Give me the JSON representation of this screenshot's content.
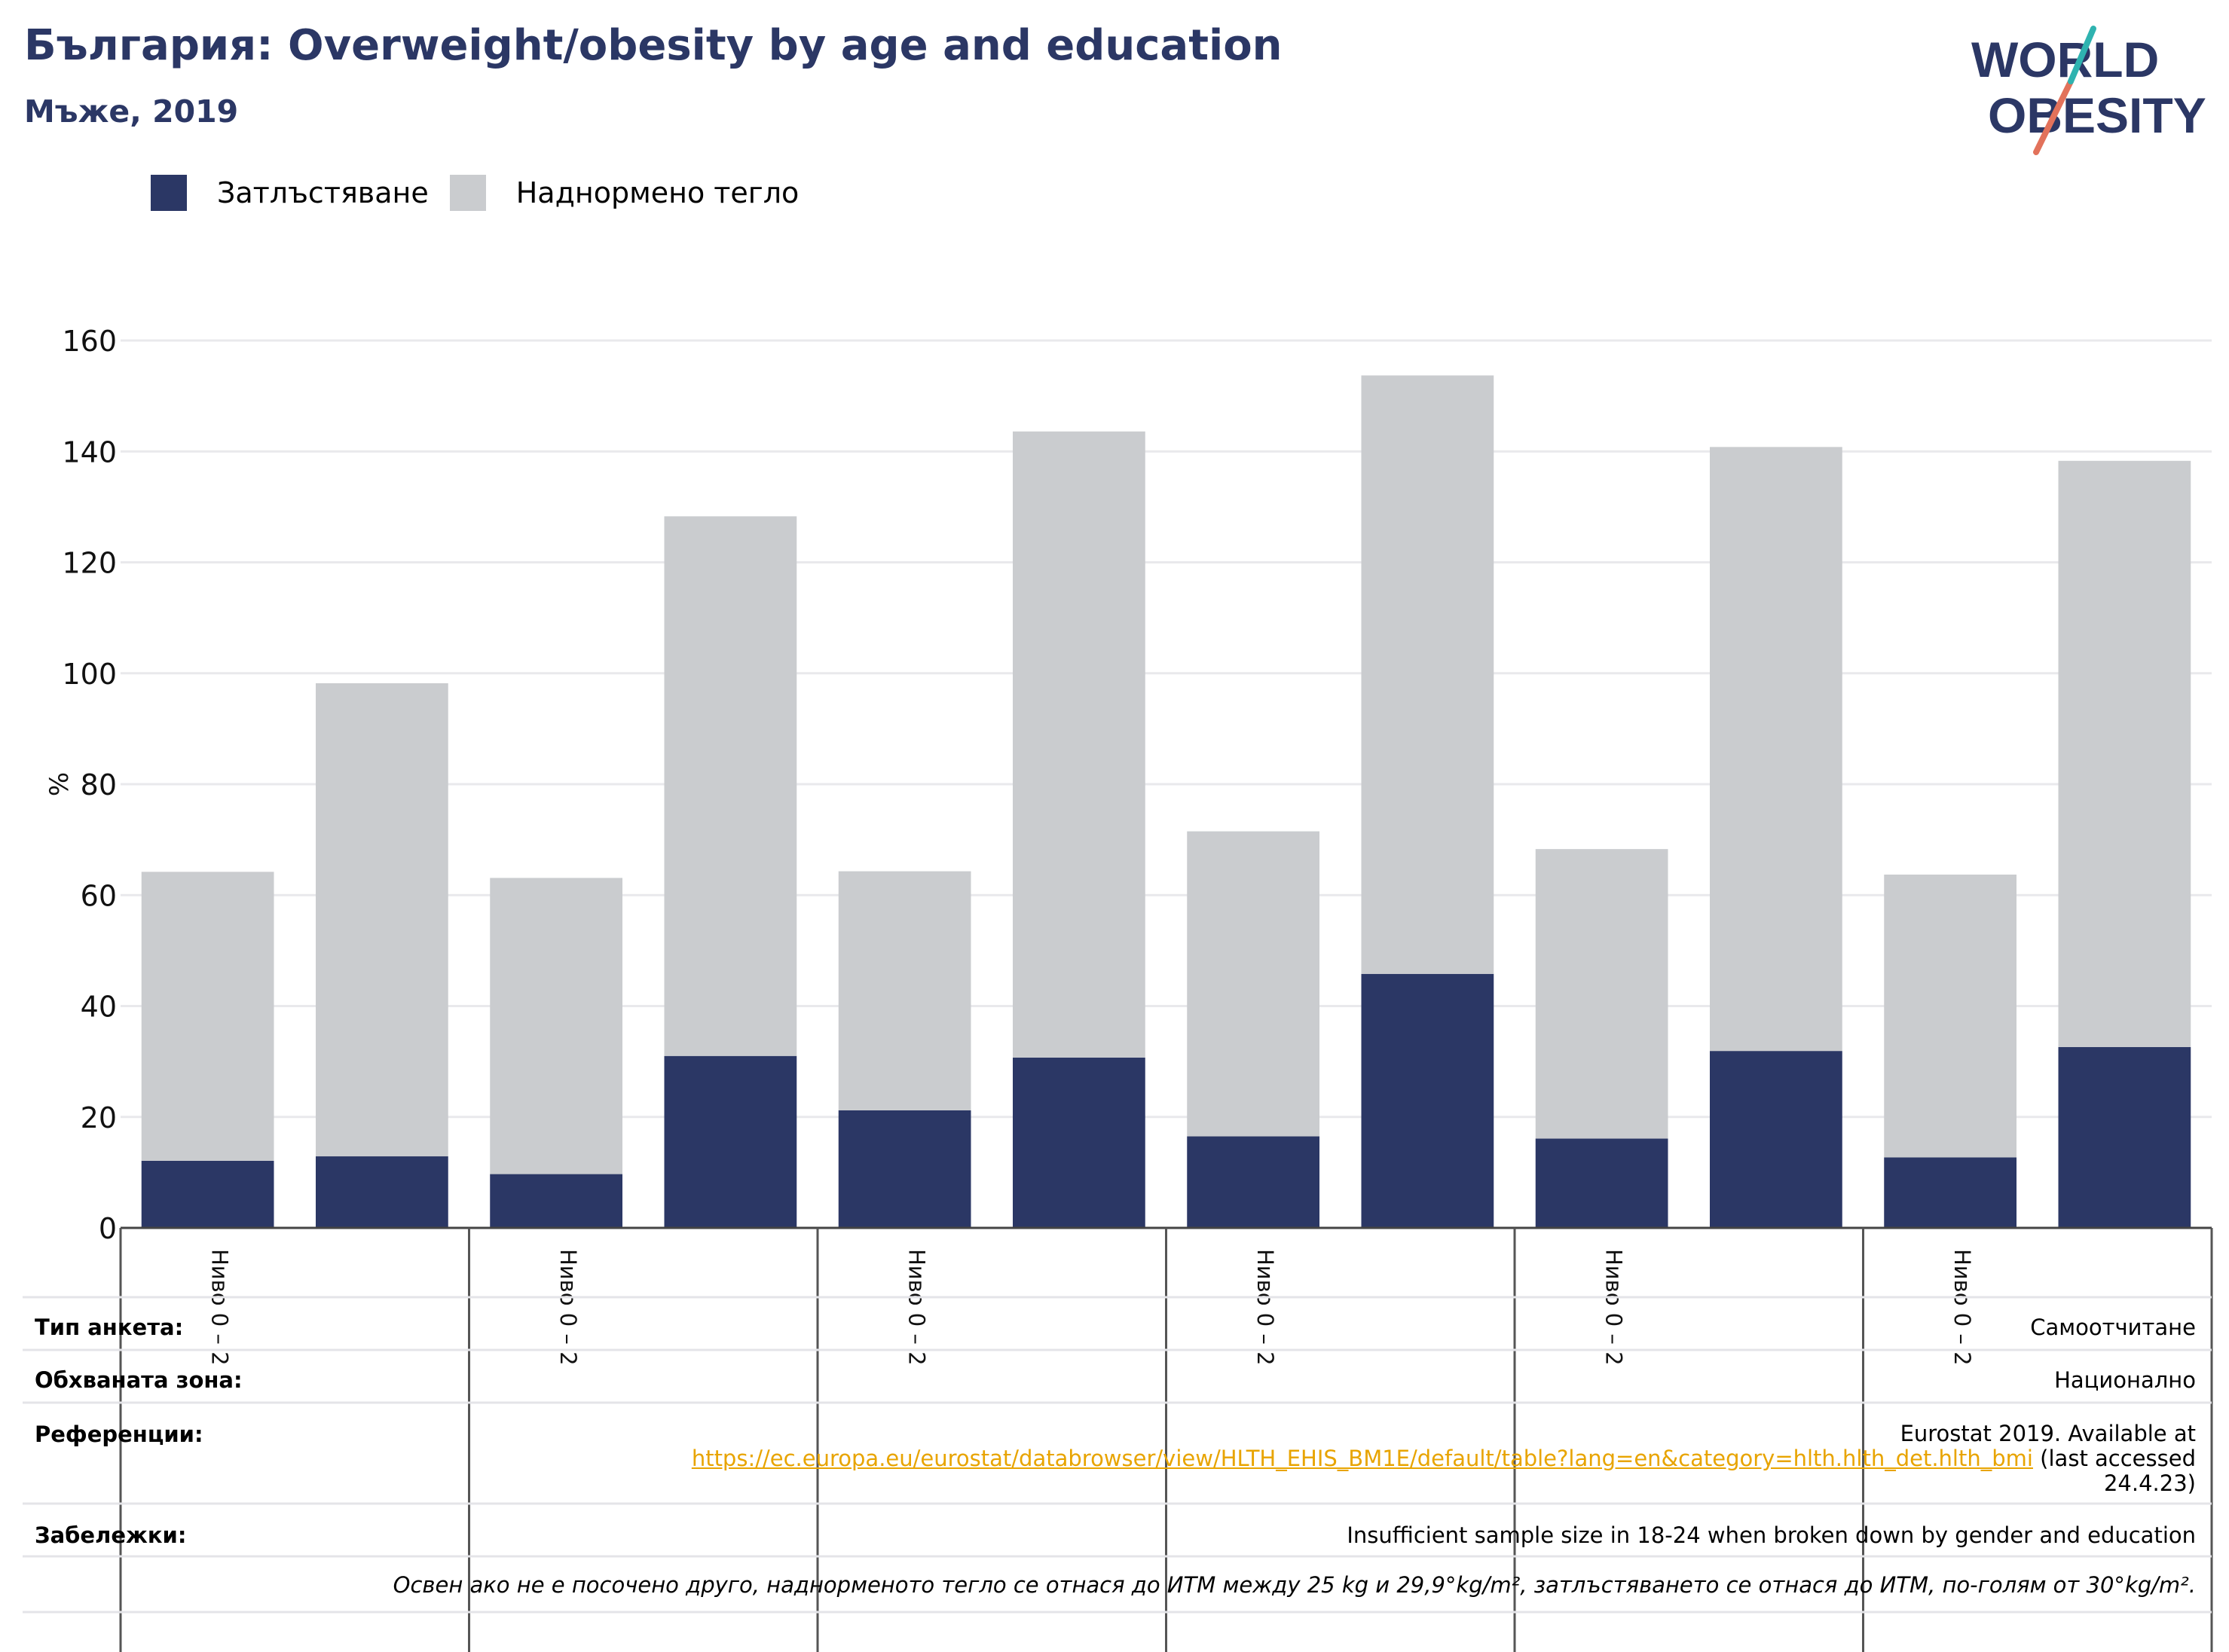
{
  "header": {
    "title": "България: Overweight/obesity by age and education",
    "subtitle": "Мъже, 2019"
  },
  "logo": {
    "line1": "WORLD",
    "line2": "OBESITY"
  },
  "colors": {
    "obesity": "#2b3765",
    "overweight": "#cacccf",
    "grid": "#e9e9ec",
    "link": "#e8a400"
  },
  "chart_data": {
    "type": "bar",
    "stacked": true,
    "ylabel": "%",
    "ylim": [
      0,
      160
    ],
    "yticks": [
      0,
      20,
      40,
      60,
      80,
      100,
      120,
      140,
      160
    ],
    "grid": true,
    "legend_position": "top-left",
    "group_label": "Ниво 0 – 2",
    "categories": [
      "Ниво 0 – 2",
      "",
      "Ниво 0 – 2",
      "",
      "Ниво 0 – 2",
      "",
      "Ниво 0 – 2",
      "",
      "Ниво 0 – 2",
      "",
      "Ниво 0 – 2",
      ""
    ],
    "series": [
      {
        "name": "Затлъстяване",
        "values": [
          12.1,
          12.9,
          9.7,
          31.0,
          21.2,
          30.7,
          16.5,
          45.8,
          16.1,
          31.9,
          12.7,
          32.6
        ]
      },
      {
        "name": "Наднормено тегло",
        "values": [
          52.1,
          85.3,
          53.4,
          97.3,
          43.1,
          112.9,
          55.0,
          107.9,
          52.2,
          108.9,
          51.0,
          105.7
        ]
      }
    ]
  },
  "info": {
    "survey_label": "Тип анкета:",
    "survey_value": "Самоотчитане",
    "area_label": "Обхваната зона:",
    "area_value": "Национално",
    "ref_label": "Референции:",
    "ref_text": "Eurostat 2019. Available at",
    "ref_url": "https://ec.europa.eu/eurostat/databrowser/view/HLTH_EHIS_BM1E/default/table?lang=en&category=hlth.hlth_det.hlth_bmi",
    "ref_suffix": " (last accessed",
    "ref_date": "24.4.23)",
    "notes_label": "Забележки:",
    "notes_value": "Insufficient sample size in 18-24 when broken down by gender and education",
    "footnote": "Освен ако не е посочено друго, наднорменото тегло се отнася до ИТМ между 25 kg и 29,9°kg/m², затлъстяването се отнася до ИТМ, по-голям от 30°kg/m²."
  }
}
